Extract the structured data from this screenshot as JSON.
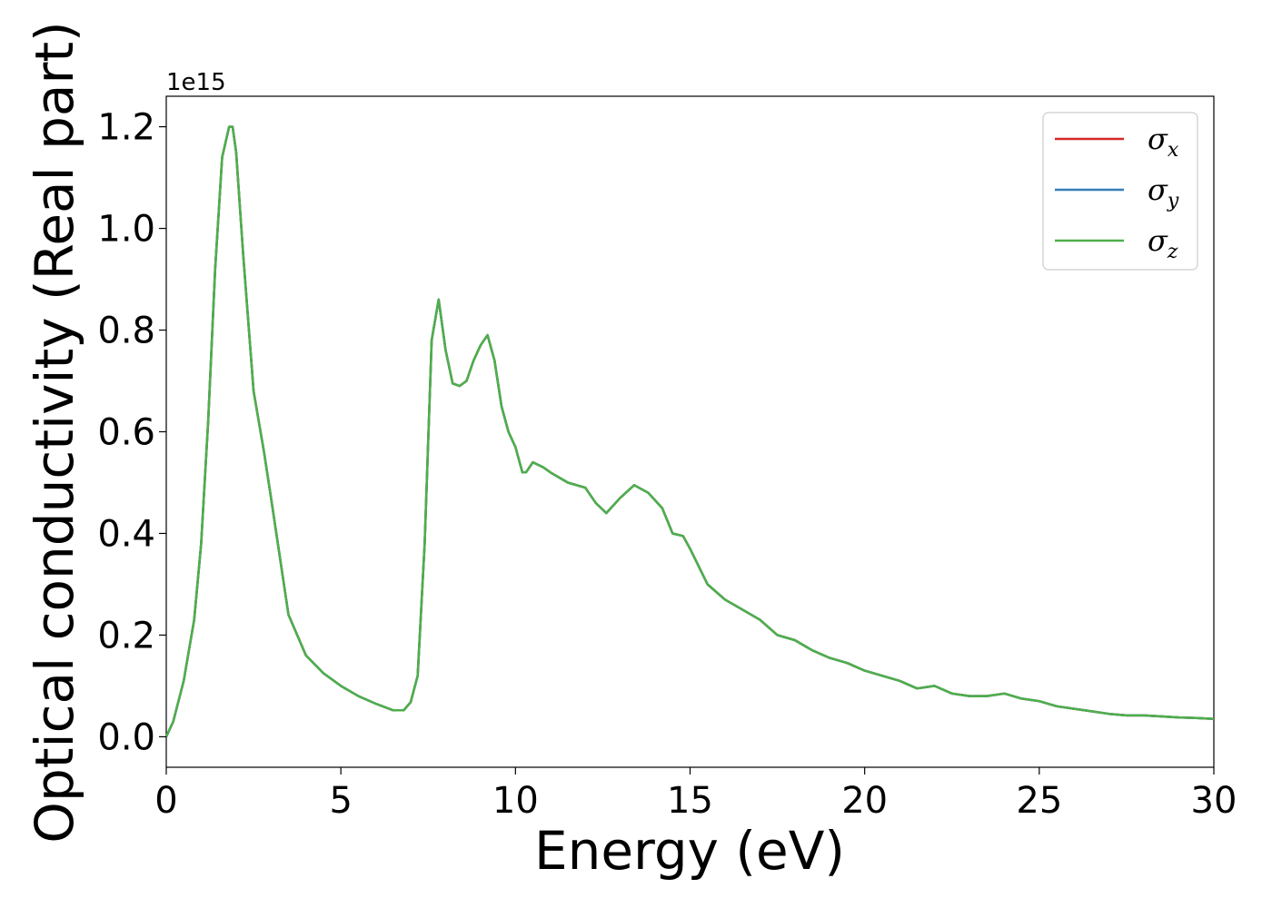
{
  "chart_data": {
    "type": "line",
    "title": "",
    "xlabel": "Energy (eV)",
    "ylabel": "Optical conductivity (Real part)",
    "y_offset_label": "1e15",
    "xlim": [
      0,
      30
    ],
    "ylim": [
      -0.06,
      1.26
    ],
    "xticks": [
      0,
      5,
      10,
      15,
      20,
      25,
      30
    ],
    "xtick_labels": [
      "0",
      "5",
      "10",
      "15",
      "20",
      "25",
      "30"
    ],
    "yticks": [
      0.0,
      0.2,
      0.4,
      0.6,
      0.8,
      1.0,
      1.2
    ],
    "ytick_labels": [
      "0.0",
      "0.2",
      "0.4",
      "0.6",
      "0.8",
      "1.0",
      "1.2"
    ],
    "grid": false,
    "legend_position": "top-right",
    "x": [
      0,
      0.2,
      0.5,
      0.8,
      1.0,
      1.2,
      1.4,
      1.6,
      1.8,
      1.9,
      2.0,
      2.2,
      2.5,
      2.8,
      3.0,
      3.5,
      4.0,
      4.5,
      5.0,
      5.5,
      6.0,
      6.5,
      6.8,
      7.0,
      7.2,
      7.4,
      7.6,
      7.8,
      8.0,
      8.2,
      8.4,
      8.6,
      8.8,
      9.0,
      9.2,
      9.4,
      9.6,
      9.8,
      10.0,
      10.2,
      10.3,
      10.5,
      10.8,
      11.0,
      11.5,
      12.0,
      12.3,
      12.6,
      13.0,
      13.4,
      13.8,
      14.2,
      14.5,
      14.8,
      15.0,
      15.5,
      16.0,
      16.5,
      17.0,
      17.5,
      18.0,
      18.5,
      19.0,
      19.5,
      20.0,
      20.5,
      21.0,
      21.5,
      22.0,
      22.5,
      23.0,
      23.5,
      24.0,
      24.5,
      25.0,
      25.5,
      26.0,
      26.5,
      27.0,
      27.5,
      28.0,
      28.5,
      29.0,
      29.5,
      30.0
    ],
    "series": [
      {
        "name": "σx",
        "color": "#d62728",
        "values": [
          0.0,
          0.03,
          0.11,
          0.23,
          0.38,
          0.62,
          0.92,
          1.14,
          1.2,
          1.2,
          1.15,
          0.95,
          0.68,
          0.56,
          0.47,
          0.24,
          0.16,
          0.125,
          0.1,
          0.08,
          0.065,
          0.052,
          0.052,
          0.068,
          0.12,
          0.38,
          0.78,
          0.86,
          0.76,
          0.695,
          0.69,
          0.7,
          0.74,
          0.77,
          0.79,
          0.74,
          0.65,
          0.6,
          0.57,
          0.52,
          0.52,
          0.54,
          0.53,
          0.52,
          0.5,
          0.49,
          0.46,
          0.44,
          0.47,
          0.495,
          0.48,
          0.45,
          0.4,
          0.395,
          0.37,
          0.3,
          0.27,
          0.25,
          0.23,
          0.2,
          0.19,
          0.17,
          0.155,
          0.145,
          0.13,
          0.12,
          0.11,
          0.095,
          0.1,
          0.085,
          0.08,
          0.08,
          0.085,
          0.075,
          0.07,
          0.06,
          0.055,
          0.05,
          0.045,
          0.042,
          0.042,
          0.04,
          0.038,
          0.037,
          0.035
        ]
      },
      {
        "name": "σy",
        "color": "#377eb8",
        "values": [
          0.0,
          0.03,
          0.11,
          0.23,
          0.38,
          0.62,
          0.92,
          1.14,
          1.2,
          1.2,
          1.15,
          0.95,
          0.68,
          0.56,
          0.47,
          0.24,
          0.16,
          0.125,
          0.1,
          0.08,
          0.065,
          0.052,
          0.052,
          0.068,
          0.12,
          0.38,
          0.78,
          0.86,
          0.76,
          0.695,
          0.69,
          0.7,
          0.74,
          0.77,
          0.79,
          0.74,
          0.65,
          0.6,
          0.57,
          0.52,
          0.52,
          0.54,
          0.53,
          0.52,
          0.5,
          0.49,
          0.46,
          0.44,
          0.47,
          0.495,
          0.48,
          0.45,
          0.4,
          0.395,
          0.37,
          0.3,
          0.27,
          0.25,
          0.23,
          0.2,
          0.19,
          0.17,
          0.155,
          0.145,
          0.13,
          0.12,
          0.11,
          0.095,
          0.1,
          0.085,
          0.08,
          0.08,
          0.085,
          0.075,
          0.07,
          0.06,
          0.055,
          0.05,
          0.045,
          0.042,
          0.042,
          0.04,
          0.038,
          0.037,
          0.035
        ]
      },
      {
        "name": "σz",
        "color": "#4daf4a",
        "values": [
          0.0,
          0.03,
          0.11,
          0.23,
          0.38,
          0.62,
          0.92,
          1.14,
          1.2,
          1.2,
          1.15,
          0.95,
          0.68,
          0.56,
          0.47,
          0.24,
          0.16,
          0.125,
          0.1,
          0.08,
          0.065,
          0.052,
          0.052,
          0.068,
          0.12,
          0.38,
          0.78,
          0.86,
          0.76,
          0.695,
          0.69,
          0.7,
          0.74,
          0.77,
          0.79,
          0.74,
          0.65,
          0.6,
          0.57,
          0.52,
          0.52,
          0.54,
          0.53,
          0.52,
          0.5,
          0.49,
          0.46,
          0.44,
          0.47,
          0.495,
          0.48,
          0.45,
          0.4,
          0.395,
          0.37,
          0.3,
          0.27,
          0.25,
          0.23,
          0.2,
          0.19,
          0.17,
          0.155,
          0.145,
          0.13,
          0.12,
          0.11,
          0.095,
          0.1,
          0.085,
          0.08,
          0.08,
          0.085,
          0.075,
          0.07,
          0.06,
          0.055,
          0.05,
          0.045,
          0.042,
          0.042,
          0.04,
          0.038,
          0.037,
          0.035
        ]
      }
    ],
    "legend": [
      {
        "symbol": "σ",
        "sub": "x"
      },
      {
        "symbol": "σ",
        "sub": "y"
      },
      {
        "symbol": "σ",
        "sub": "z"
      }
    ]
  }
}
